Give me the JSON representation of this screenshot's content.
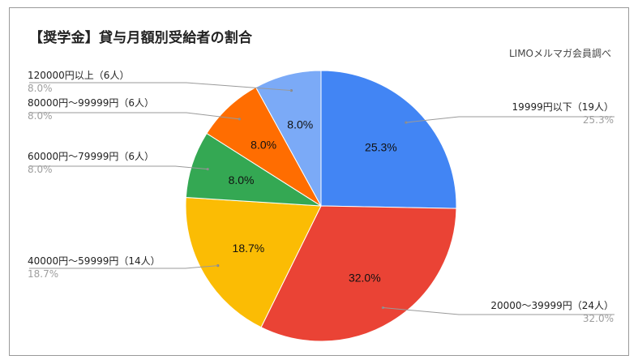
{
  "chart_data": {
    "type": "pie",
    "title": "【奨学金】貸与月額別受給者の割合",
    "subtitle": "LIMOメルマガ会員調べ",
    "slices": [
      {
        "label": "19999円以下（19人）",
        "value": 25.3,
        "pct_label": "25.3%",
        "color": "#4285f4"
      },
      {
        "label": "20000〜39999円（24人）",
        "value": 32.0,
        "pct_label": "32.0%",
        "color": "#ea4335"
      },
      {
        "label": "40000円〜59999円（14人）",
        "value": 18.7,
        "pct_label": "18.7%",
        "color": "#fbbc04"
      },
      {
        "label": "60000円〜79999円（6人）",
        "value": 8.0,
        "pct_label": "8.0%",
        "color": "#34a853"
      },
      {
        "label": "80000円〜99999円（6人）",
        "value": 8.0,
        "pct_label": "8.0%",
        "color": "#ff6d01"
      },
      {
        "label": "120000円以上（6人）",
        "value": 8.0,
        "pct_label": "8.0%",
        "color": "#7baaf7"
      }
    ]
  }
}
